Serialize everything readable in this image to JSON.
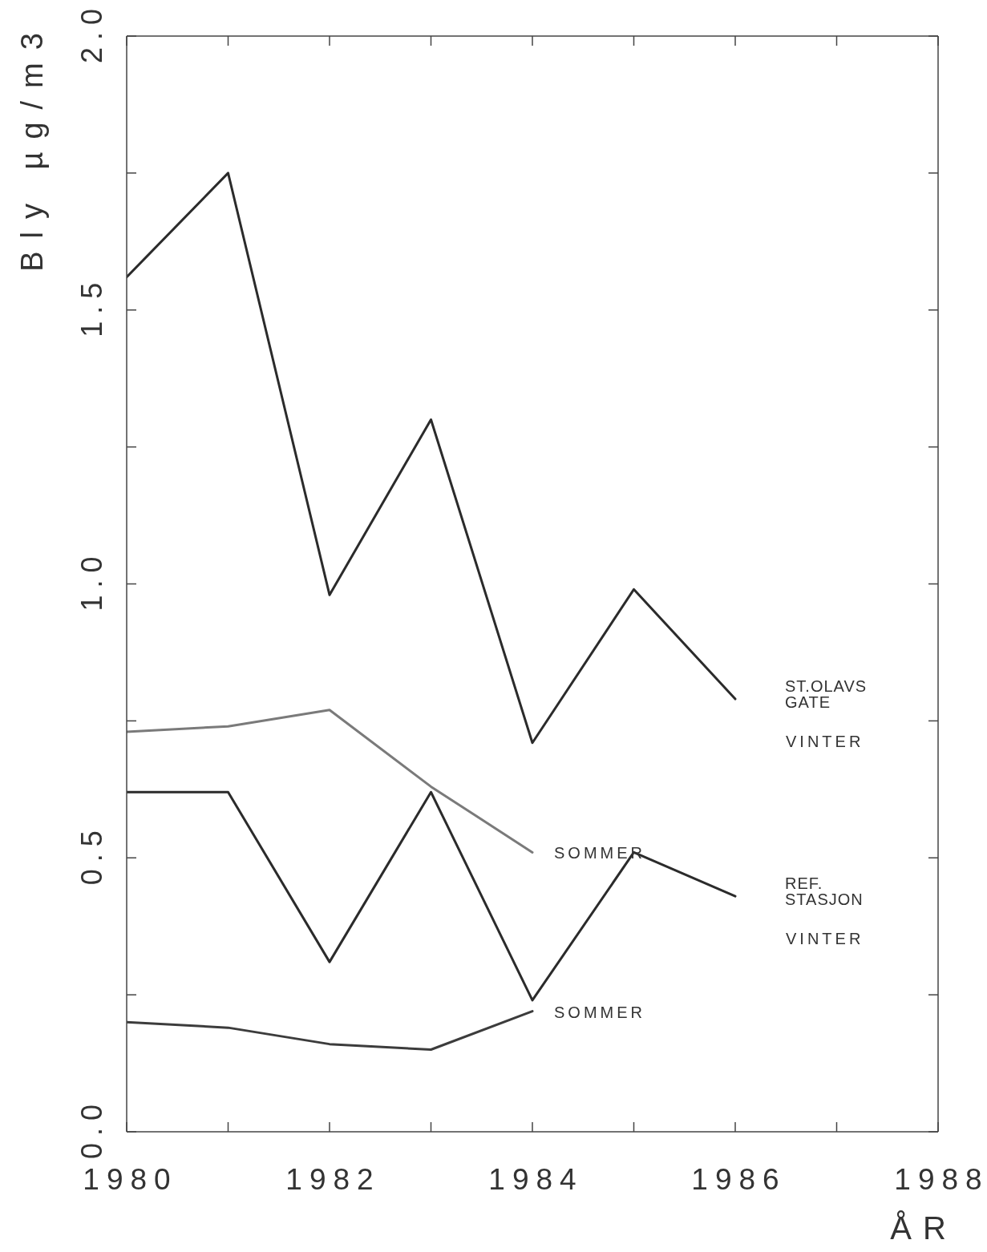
{
  "chart_data": {
    "type": "line",
    "xlabel": "ÅR",
    "ylabel": "Bly µg/m3",
    "x": [
      1980,
      1981,
      1982,
      1983,
      1984,
      1985,
      1986
    ],
    "xlim": [
      1980,
      1988
    ],
    "xticks": [
      1980,
      {
        "value": 1981,
        "label": null
      },
      1982,
      {
        "value": 1983,
        "label": null
      },
      1984,
      {
        "value": 1985,
        "label": null
      },
      1986,
      {
        "value": 1987,
        "label": null
      },
      1988
    ],
    "ylim": [
      0,
      2
    ],
    "yticks": [
      {
        "value": 0,
        "label": "0.0"
      },
      {
        "value": 0.25,
        "label": null
      },
      0.5,
      {
        "value": 0.75,
        "label": null
      },
      {
        "value": 1,
        "label": "1.0"
      },
      {
        "value": 1.25,
        "label": null
      },
      1.5,
      {
        "value": 1.75,
        "label": null
      },
      {
        "value": 2,
        "label": "2.0"
      }
    ],
    "grid": false,
    "legend": false,
    "marker": "none",
    "line_style": "solid",
    "series": [
      {
        "name": "VINTER",
        "color": "#2b2b2b",
        "values": [
          1.56,
          1.75,
          0.98,
          1.3,
          0.71,
          0.99,
          0.79
        ]
      },
      {
        "name": "SOMMER",
        "color": "#7a7a7a",
        "x": [
          1980,
          1981,
          1982,
          1983,
          1984
        ],
        "values": [
          0.73,
          0.74,
          0.77,
          0.63,
          0.51
        ]
      },
      {
        "name": "VINTER",
        "color": "#2b2b2b",
        "values": [
          0.62,
          0.62,
          0.31,
          0.62,
          0.24,
          0.51,
          0.43
        ]
      },
      {
        "name": "SOMMER",
        "color": "#3c3c3c",
        "x": [
          1980,
          1981,
          1982,
          1983,
          1984
        ],
        "values": [
          0.2,
          0.19,
          0.16,
          0.15,
          0.22
        ]
      }
    ],
    "annotations": [
      "ST.OLAVS GATE",
      "REF. STASJON"
    ]
  }
}
